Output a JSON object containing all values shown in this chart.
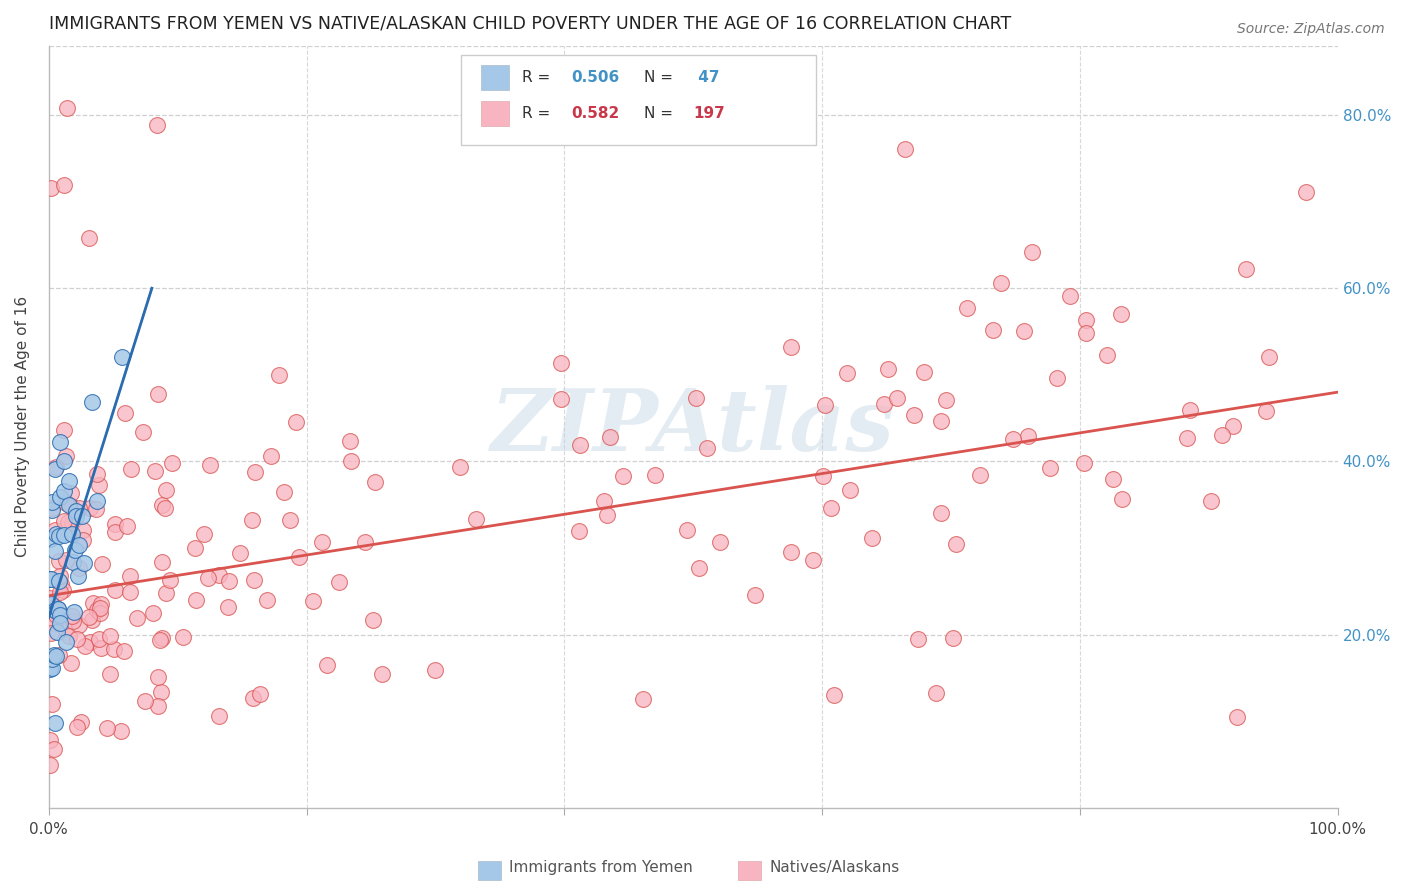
{
  "title": "IMMIGRANTS FROM YEMEN VS NATIVE/ALASKAN CHILD POVERTY UNDER THE AGE OF 16 CORRELATION CHART",
  "source": "Source: ZipAtlas.com",
  "ylabel": "Child Poverty Under the Age of 16",
  "xlim": [
    0,
    1.0
  ],
  "ylim": [
    0,
    0.88
  ],
  "ytick_labels_right": [
    "20.0%",
    "40.0%",
    "60.0%",
    "80.0%"
  ],
  "ytick_positions_right": [
    0.2,
    0.4,
    0.6,
    0.8
  ],
  "watermark": "ZIPAtlas",
  "blue_color": "#a6c8e8",
  "pink_color": "#f8b4c0",
  "blue_line_color": "#2b6cb0",
  "pink_line_color": "#d9534f",
  "gray_dash_color": "#c0c0c0",
  "legend_r1_label": "R = ",
  "legend_r1_val": "0.506",
  "legend_n1_label": "N = ",
  "legend_n1_val": " 47",
  "legend_r2_label": "R = ",
  "legend_r2_val": "0.582",
  "legend_n2_label": "N = ",
  "legend_n2_val": "197",
  "blue_legend_color": "#4292c6",
  "pink_legend_color": "#c9374a",
  "bottom_legend1": "Immigrants from Yemen",
  "bottom_legend2": "Natives/Alaskans",
  "blue_seed": 77,
  "pink_seed": 99
}
